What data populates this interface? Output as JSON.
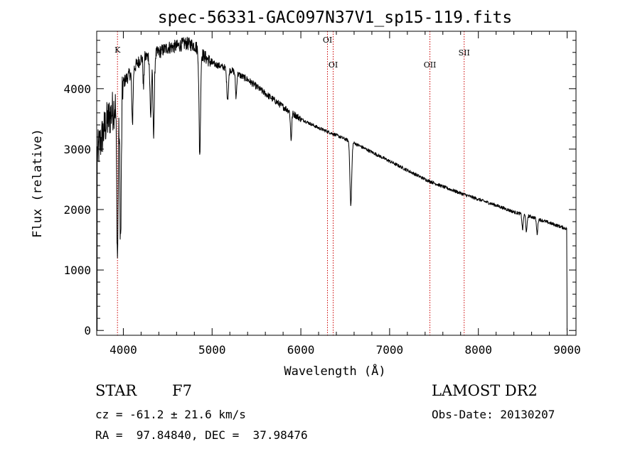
{
  "chart_data": {
    "type": "line",
    "title": "spec-56331-GAC097N37V1_sp15-119.fits",
    "xlabel": "Wavelength (Å)",
    "ylabel": "Flux (relative)",
    "xlim": [
      3700,
      9100
    ],
    "ylim": [
      -80,
      4950
    ],
    "x_ticks": [
      4000,
      5000,
      6000,
      7000,
      8000,
      9000
    ],
    "y_ticks": [
      0,
      1000,
      2000,
      3000,
      4000
    ],
    "grid": false,
    "spectrum": {
      "continuum": [
        [
          3700,
          2900
        ],
        [
          3800,
          3400
        ],
        [
          3900,
          3700
        ],
        [
          4000,
          4100
        ],
        [
          4100,
          4300
        ],
        [
          4200,
          4500
        ],
        [
          4300,
          4550
        ],
        [
          4400,
          4600
        ],
        [
          4500,
          4680
        ],
        [
          4600,
          4700
        ],
        [
          4700,
          4750
        ],
        [
          4800,
          4720
        ],
        [
          4900,
          4550
        ],
        [
          5000,
          4420
        ],
        [
          5200,
          4320
        ],
        [
          5400,
          4150
        ],
        [
          5600,
          3920
        ],
        [
          5800,
          3700
        ],
        [
          6000,
          3500
        ],
        [
          6200,
          3350
        ],
        [
          6400,
          3230
        ],
        [
          6600,
          3100
        ],
        [
          6800,
          2950
        ],
        [
          7000,
          2800
        ],
        [
          7200,
          2650
        ],
        [
          7400,
          2500
        ],
        [
          7600,
          2380
        ],
        [
          7800,
          2270
        ],
        [
          8000,
          2170
        ],
        [
          8200,
          2070
        ],
        [
          8400,
          1960
        ],
        [
          8600,
          1880
        ],
        [
          8800,
          1780
        ],
        [
          9000,
          1680
        ]
      ],
      "absorption_lines": [
        {
          "x": 3934,
          "depth": 2600,
          "width": 12
        },
        {
          "x": 3969,
          "depth": 2500,
          "width": 12
        },
        {
          "x": 4102,
          "depth": 900,
          "width": 10
        },
        {
          "x": 4227,
          "depth": 500,
          "width": 8
        },
        {
          "x": 4308,
          "depth": 1000,
          "width": 12
        },
        {
          "x": 4341,
          "depth": 1300,
          "width": 12
        },
        {
          "x": 4861,
          "depth": 1700,
          "width": 12
        },
        {
          "x": 5175,
          "depth": 500,
          "width": 14
        },
        {
          "x": 5270,
          "depth": 400,
          "width": 10
        },
        {
          "x": 5890,
          "depth": 450,
          "width": 10
        },
        {
          "x": 6563,
          "depth": 1050,
          "width": 14
        },
        {
          "x": 8498,
          "depth": 250,
          "width": 10
        },
        {
          "x": 8542,
          "depth": 280,
          "width": 10
        },
        {
          "x": 8662,
          "depth": 250,
          "width": 10
        }
      ]
    },
    "line_markers": [
      {
        "label": "K",
        "x": 3934
      },
      {
        "label": "OI",
        "x": 6300
      },
      {
        "label": "OI",
        "x": 6364
      },
      {
        "label": "OII",
        "x": 7454
      },
      {
        "label": "SII",
        "x": 7840
      }
    ],
    "marker_color": "#cc0000"
  },
  "info": {
    "object_class": "STAR",
    "subclass": "F7",
    "redshift": "cz = -61.2 ± 21.6 km/s",
    "coords": "RA =  97.84840, DEC =  37.98476",
    "survey": "LAMOST DR2",
    "obs_date": "Obs-Date: 20130207"
  }
}
